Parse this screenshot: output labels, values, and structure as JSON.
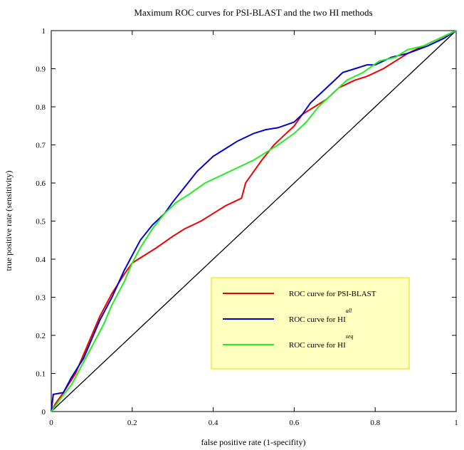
{
  "chart_data": {
    "type": "line",
    "title": "Maximum ROC curves for PSI-BLAST and the two HI methods",
    "x_label": "false positive rate (1-specifity)",
    "y_label": "true positive rate (sensitivity)",
    "xlim": [
      0,
      1
    ],
    "ylim": [
      0,
      1
    ],
    "xticks": [
      0,
      0.2,
      0.4,
      0.6,
      0.8,
      1
    ],
    "yticks": [
      0,
      0.1,
      0.2,
      0.3,
      0.4,
      0.5,
      0.6,
      0.7,
      0.8,
      0.9,
      1
    ],
    "diagonal": {
      "color": "#000000",
      "x": [
        0,
        1
      ],
      "values": [
        0,
        1
      ]
    },
    "legend_background": "#ffffc0",
    "series": [
      {
        "name": "ROC curve for PSI-BLAST",
        "color": "#ee0000",
        "x": [
          0,
          0.01,
          0.03,
          0.06,
          0.08,
          0.1,
          0.12,
          0.15,
          0.18,
          0.2,
          0.23,
          0.26,
          0.3,
          0.33,
          0.37,
          0.4,
          0.43,
          0.47,
          0.48,
          0.5,
          0.52,
          0.55,
          0.57,
          0.6,
          0.62,
          0.65,
          0.68,
          0.71,
          0.75,
          0.78,
          0.82,
          0.85,
          0.88,
          0.92,
          0.96,
          1
        ],
        "values": [
          0,
          0.02,
          0.05,
          0.1,
          0.15,
          0.2,
          0.25,
          0.31,
          0.36,
          0.39,
          0.41,
          0.43,
          0.46,
          0.48,
          0.5,
          0.52,
          0.54,
          0.56,
          0.6,
          0.63,
          0.66,
          0.7,
          0.72,
          0.75,
          0.78,
          0.8,
          0.82,
          0.85,
          0.87,
          0.88,
          0.9,
          0.92,
          0.94,
          0.96,
          0.98,
          1
        ]
      },
      {
        "name": "ROC curve for HI",
        "name_superscript": "all",
        "color": "#0000cc",
        "x": [
          0,
          0.005,
          0.03,
          0.05,
          0.08,
          0.1,
          0.12,
          0.15,
          0.18,
          0.2,
          0.22,
          0.25,
          0.28,
          0.3,
          0.33,
          0.36,
          0.4,
          0.43,
          0.46,
          0.5,
          0.53,
          0.56,
          0.6,
          0.62,
          0.64,
          0.67,
          0.7,
          0.72,
          0.75,
          0.78,
          0.8,
          0.84,
          0.88,
          0.93,
          0.97,
          1
        ],
        "values": [
          0,
          0.045,
          0.05,
          0.09,
          0.14,
          0.19,
          0.24,
          0.3,
          0.37,
          0.41,
          0.45,
          0.49,
          0.52,
          0.55,
          0.59,
          0.63,
          0.67,
          0.69,
          0.71,
          0.73,
          0.74,
          0.745,
          0.76,
          0.78,
          0.81,
          0.84,
          0.87,
          0.89,
          0.9,
          0.91,
          0.91,
          0.93,
          0.94,
          0.96,
          0.98,
          1
        ]
      },
      {
        "name": "ROC curve for HI",
        "name_superscript": "seq",
        "color": "#22ee22",
        "x": [
          0,
          0.02,
          0.05,
          0.08,
          0.1,
          0.13,
          0.15,
          0.18,
          0.2,
          0.22,
          0.25,
          0.28,
          0.31,
          0.34,
          0.38,
          0.42,
          0.46,
          0.5,
          0.53,
          0.56,
          0.6,
          0.63,
          0.66,
          0.7,
          0.73,
          0.77,
          0.81,
          0.85,
          0.88,
          0.92,
          0.96,
          1
        ],
        "values": [
          0,
          0.03,
          0.07,
          0.13,
          0.17,
          0.23,
          0.28,
          0.34,
          0.39,
          0.43,
          0.48,
          0.52,
          0.55,
          0.57,
          0.6,
          0.62,
          0.64,
          0.66,
          0.68,
          0.7,
          0.73,
          0.76,
          0.8,
          0.84,
          0.87,
          0.89,
          0.92,
          0.93,
          0.95,
          0.96,
          0.98,
          1
        ]
      }
    ]
  }
}
